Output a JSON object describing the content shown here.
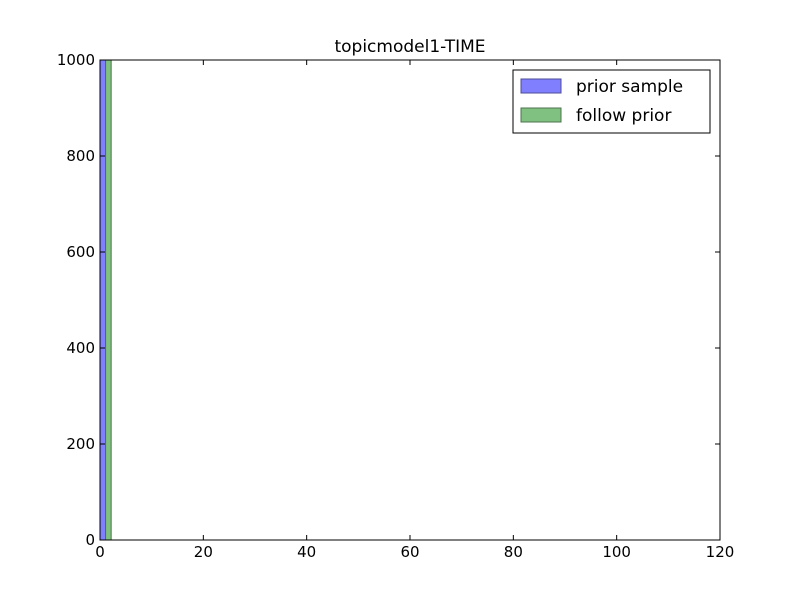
{
  "chart_data": {
    "type": "bar",
    "title": "topicmodel1-TIME",
    "xlabel": "",
    "ylabel": "",
    "xlim": [
      0,
      120
    ],
    "ylim": [
      0,
      1000
    ],
    "xticks": [
      "0",
      "20",
      "40",
      "60",
      "80",
      "100",
      "120"
    ],
    "yticks": [
      "0",
      "200",
      "400",
      "600",
      "800",
      "1000"
    ],
    "grid": false,
    "legend_position": "top-right",
    "series": [
      {
        "name": "prior sample",
        "color": "#8080ff",
        "edge_color": "#4c4c99",
        "bins": [
          {
            "x0": 0,
            "x1": 1.08,
            "count": 1000
          }
        ]
      },
      {
        "name": "follow prior",
        "color": "#80c080",
        "edge_color": "#4c734c",
        "bins": [
          {
            "x0": 1.08,
            "x1": 2.16,
            "count": 1000
          }
        ]
      }
    ]
  }
}
